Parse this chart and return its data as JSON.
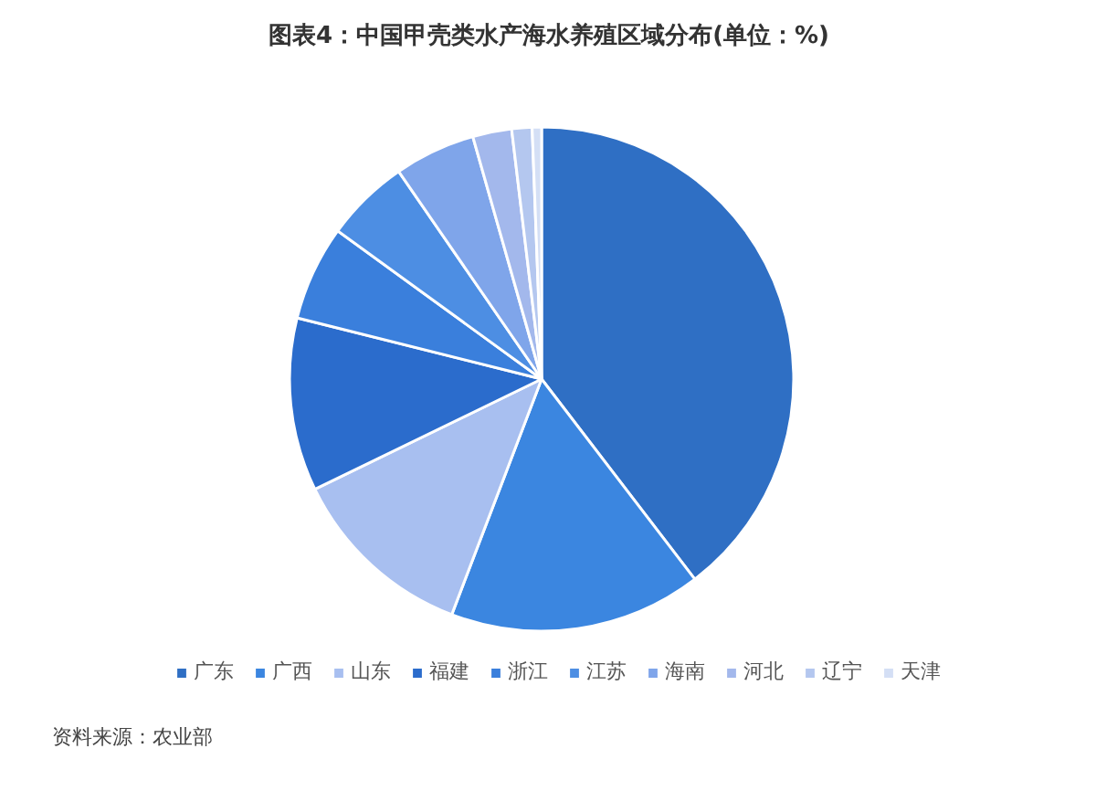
{
  "chart_data": {
    "type": "pie",
    "title": "图表4：中国甲壳类水产海水养殖区域分布(单位：%)",
    "categories": [
      "广东",
      "广西",
      "山东",
      "福建",
      "浙江",
      "江苏",
      "海南",
      "河北",
      "辽宁",
      "天津"
    ],
    "values": [
      39.6,
      16.2,
      12.0,
      11.1,
      6.1,
      5.4,
      5.2,
      2.5,
      1.3,
      0.6
    ],
    "colors": [
      "#2f6fc4",
      "#3b86e0",
      "#a8bff0",
      "#2b6ccc",
      "#3a7fdc",
      "#4d8ee3",
      "#7fa5ea",
      "#a3b8ec",
      "#b4c7ef",
      "#d4dff5"
    ],
    "legend": "bottom",
    "annotations": [
      "资料来源：农业部"
    ]
  }
}
